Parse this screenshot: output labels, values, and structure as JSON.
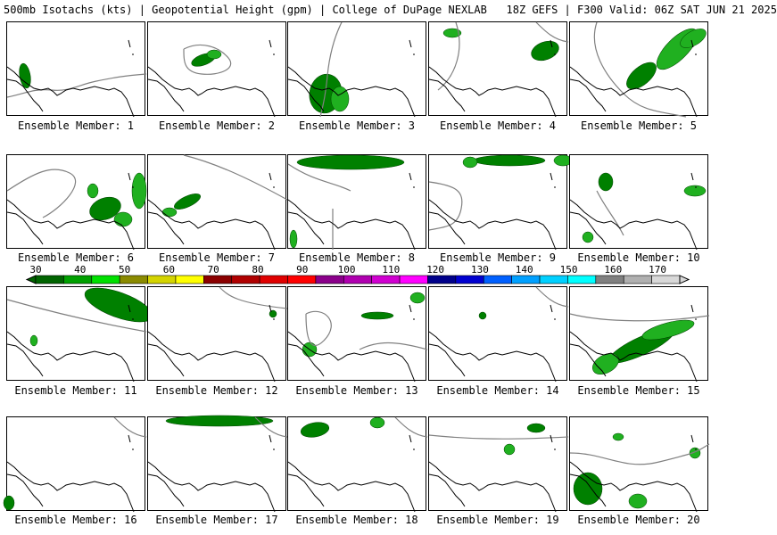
{
  "header": {
    "title": "500mb Isotachs (kts) | Geopotential Height (gpm) | College of DuPage NEXLAB   18Z GEFS | F300 Valid: 06Z SAT JUN 21 2025"
  },
  "colorbar": {
    "ticks": [
      "30",
      "40",
      "50",
      "60",
      "70",
      "80",
      "90",
      "100",
      "110",
      "120",
      "130",
      "140",
      "150",
      "160",
      "170"
    ],
    "colors": [
      "#006400",
      "#00a000",
      "#00e000",
      "#8b8b00",
      "#d4d400",
      "#ffff00",
      "#8b0000",
      "#b00000",
      "#e00000",
      "#ff0000",
      "#8b008b",
      "#b000b0",
      "#d000d0",
      "#ff00ff",
      "#00008b",
      "#0000d0",
      "#0060ff",
      "#00a0ff",
      "#00d0ff",
      "#00ffff",
      "#808080",
      "#b0b0b0",
      "#d8d8d8"
    ]
  },
  "members": [
    {
      "label": "Ensemble Member: 1"
    },
    {
      "label": "Ensemble Member: 2"
    },
    {
      "label": "Ensemble Member: 3"
    },
    {
      "label": "Ensemble Member: 4"
    },
    {
      "label": "Ensemble Member: 5"
    },
    {
      "label": "Ensemble Member: 6"
    },
    {
      "label": "Ensemble Member: 7"
    },
    {
      "label": "Ensemble Member: 8"
    },
    {
      "label": "Ensemble Member: 9"
    },
    {
      "label": "Ensemble Member: 10"
    },
    {
      "label": "Ensemble Member: 11"
    },
    {
      "label": "Ensemble Member: 12"
    },
    {
      "label": "Ensemble Member: 13"
    },
    {
      "label": "Ensemble Member: 14"
    },
    {
      "label": "Ensemble Member: 15"
    },
    {
      "label": "Ensemble Member: 16"
    },
    {
      "label": "Ensemble Member: 17"
    },
    {
      "label": "Ensemble Member: 18"
    },
    {
      "label": "Ensemble Member: 19"
    },
    {
      "label": "Ensemble Member: 20"
    }
  ],
  "colors": {
    "coast": "#000000",
    "height_contour": "#808080",
    "isotach_30": "#008000",
    "isotach_40": "#20b020"
  }
}
